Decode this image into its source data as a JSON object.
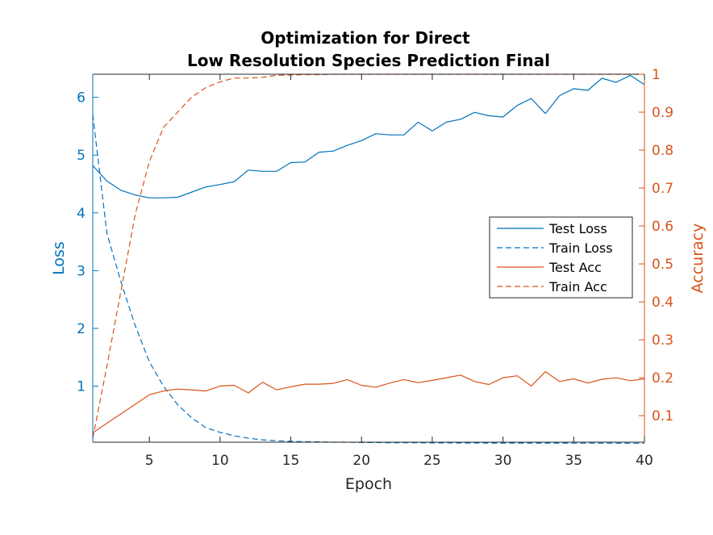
{
  "chart_data": {
    "type": "line",
    "title": [
      "Optimization for Direct",
      "Low Resolution Species Prediction Final"
    ],
    "xlabel": "Epoch",
    "ylabel_left": "Loss",
    "ylabel_right": "Accuracy",
    "xlim": [
      1,
      40
    ],
    "ylim_left": [
      0.03,
      6.4
    ],
    "ylim_right": [
      0.03,
      1.0
    ],
    "x_ticks": [
      5,
      10,
      15,
      20,
      25,
      30,
      35,
      40
    ],
    "y_ticks_left": [
      1,
      2,
      3,
      4,
      5,
      6
    ],
    "y_ticks_right": [
      0.1,
      0.2,
      0.3,
      0.4,
      0.5,
      0.6,
      0.7,
      0.8,
      0.9,
      1
    ],
    "colors": {
      "left": "#0072BD",
      "right": "#D95319"
    },
    "legend_position": "center-right",
    "x": [
      1,
      2,
      3,
      4,
      5,
      6,
      7,
      8,
      9,
      10,
      11,
      12,
      13,
      14,
      15,
      16,
      17,
      18,
      19,
      20,
      21,
      22,
      23,
      24,
      25,
      26,
      27,
      28,
      29,
      30,
      31,
      32,
      33,
      34,
      35,
      36,
      37,
      38,
      39,
      40
    ],
    "series": [
      {
        "name": "Test Loss",
        "axis": "left",
        "style": "solid",
        "values": [
          4.82,
          4.55,
          4.39,
          4.31,
          4.26,
          4.26,
          4.27,
          4.36,
          4.45,
          4.49,
          4.54,
          4.74,
          4.72,
          4.72,
          4.87,
          4.88,
          5.05,
          5.07,
          5.17,
          5.25,
          5.37,
          5.35,
          5.35,
          5.57,
          5.42,
          5.57,
          5.62,
          5.74,
          5.68,
          5.66,
          5.86,
          5.98,
          5.72,
          6.03,
          6.15,
          6.12,
          6.33,
          6.26,
          6.38,
          6.22
        ]
      },
      {
        "name": "Train Loss",
        "axis": "left",
        "style": "dashed",
        "values": [
          5.7,
          3.65,
          2.8,
          2.05,
          1.42,
          1.0,
          0.68,
          0.45,
          0.28,
          0.2,
          0.14,
          0.1,
          0.07,
          0.055,
          0.045,
          0.04,
          0.035,
          0.03,
          0.03,
          0.025,
          0.025,
          0.02,
          0.02,
          0.02,
          0.018,
          0.018,
          0.016,
          0.016,
          0.015,
          0.015,
          0.015,
          0.014,
          0.014,
          0.014,
          0.013,
          0.013,
          0.013,
          0.013,
          0.012,
          0.012
        ]
      },
      {
        "name": "Test Acc",
        "axis": "right",
        "style": "solid",
        "values": [
          0.055,
          0.08,
          0.105,
          0.13,
          0.155,
          0.165,
          0.17,
          0.168,
          0.165,
          0.178,
          0.18,
          0.16,
          0.188,
          0.168,
          0.176,
          0.183,
          0.183,
          0.185,
          0.195,
          0.18,
          0.175,
          0.186,
          0.195,
          0.187,
          0.193,
          0.2,
          0.207,
          0.19,
          0.182,
          0.2,
          0.205,
          0.178,
          0.216,
          0.19,
          0.197,
          0.186,
          0.196,
          0.2,
          0.192,
          0.197
        ]
      },
      {
        "name": "Train Acc",
        "axis": "right",
        "style": "dashed",
        "values": [
          0.04,
          0.23,
          0.43,
          0.63,
          0.77,
          0.86,
          0.9,
          0.94,
          0.965,
          0.98,
          0.99,
          0.99,
          0.992,
          0.997,
          0.998,
          0.999,
          0.999,
          1,
          1,
          1,
          1,
          1,
          1,
          1,
          1,
          1,
          1,
          1,
          1,
          1,
          1,
          1,
          1,
          1,
          1,
          1,
          1,
          1,
          1,
          1
        ]
      }
    ]
  }
}
